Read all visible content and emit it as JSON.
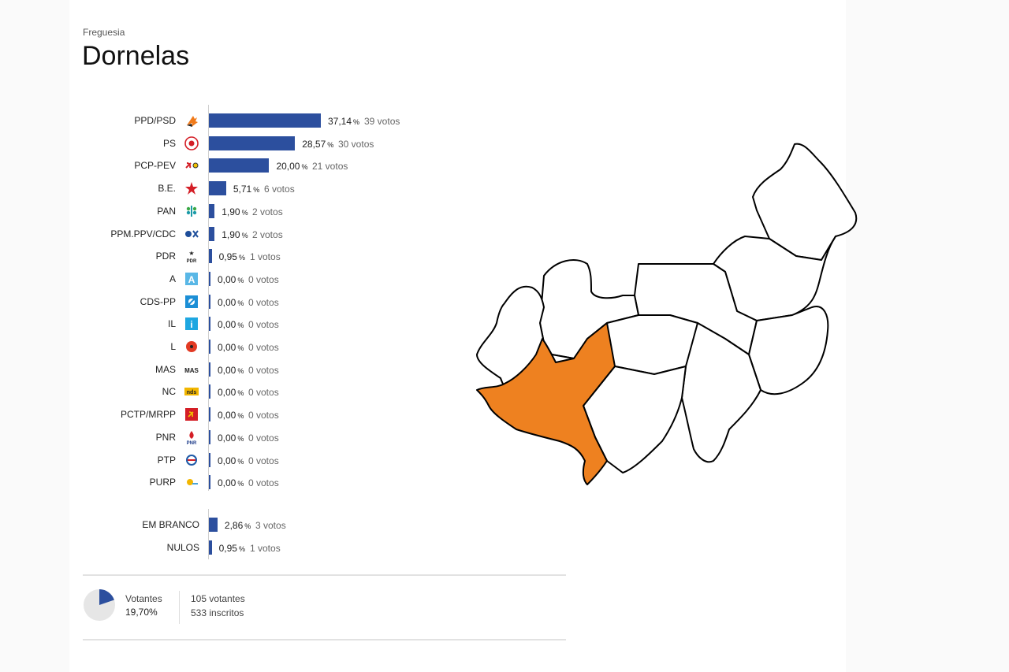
{
  "header": {
    "kicker": "Freguesia",
    "title": "Dornelas"
  },
  "colors": {
    "bar": "#2c4f9e",
    "highlight": "#ee8120",
    "map_fill": "#ffffff",
    "map_stroke": "#000000"
  },
  "chart_data": {
    "type": "bar",
    "orientation": "horizontal",
    "series": [
      {
        "name": "",
        "values": [
          37.14,
          28.57,
          20.0,
          5.71,
          1.9,
          1.9,
          0.95,
          0,
          0,
          0,
          0,
          0,
          0,
          0,
          0,
          0,
          0
        ]
      }
    ],
    "rows": [
      {
        "party": "PPD/PSD",
        "logo": "psd-logo-icon",
        "pct": 37.14,
        "pct_label": "37,14",
        "votes_label": "39 votos"
      },
      {
        "party": "PS",
        "logo": "ps-logo-icon",
        "pct": 28.57,
        "pct_label": "28,57",
        "votes_label": "30 votos"
      },
      {
        "party": "PCP-PEV",
        "logo": "pcp-pev-logo-icon",
        "pct": 20.0,
        "pct_label": "20,00",
        "votes_label": "21 votos"
      },
      {
        "party": "B.E.",
        "logo": "be-logo-icon",
        "pct": 5.71,
        "pct_label": "5,71",
        "votes_label": "6 votos"
      },
      {
        "party": "PAN",
        "logo": "pan-logo-icon",
        "pct": 1.9,
        "pct_label": "1,90",
        "votes_label": "2 votos"
      },
      {
        "party": "PPM.PPV/CDC",
        "logo": "ppm-ppv-cdc-logo-icon",
        "pct": 1.9,
        "pct_label": "1,90",
        "votes_label": "2 votos"
      },
      {
        "party": "PDR",
        "logo": "pdr-logo-icon",
        "pct": 0.95,
        "pct_label": "0,95",
        "votes_label": "1 votos"
      },
      {
        "party": "A",
        "logo": "a-logo-icon",
        "pct": 0,
        "pct_label": "0,00",
        "votes_label": "0 votos"
      },
      {
        "party": "CDS-PP",
        "logo": "cds-pp-logo-icon",
        "pct": 0,
        "pct_label": "0,00",
        "votes_label": "0 votos"
      },
      {
        "party": "IL",
        "logo": "il-logo-icon",
        "pct": 0,
        "pct_label": "0,00",
        "votes_label": "0 votos"
      },
      {
        "party": "L",
        "logo": "l-logo-icon",
        "pct": 0,
        "pct_label": "0,00",
        "votes_label": "0 votos"
      },
      {
        "party": "MAS",
        "logo": "mas-logo-icon",
        "pct": 0,
        "pct_label": "0,00",
        "votes_label": "0 votos"
      },
      {
        "party": "NC",
        "logo": "nc-logo-icon",
        "pct": 0,
        "pct_label": "0,00",
        "votes_label": "0 votos"
      },
      {
        "party": "PCTP/MRPP",
        "logo": "pctp-mrpp-logo-icon",
        "pct": 0,
        "pct_label": "0,00",
        "votes_label": "0 votos"
      },
      {
        "party": "PNR",
        "logo": "pnr-logo-icon",
        "pct": 0,
        "pct_label": "0,00",
        "votes_label": "0 votos"
      },
      {
        "party": "PTP",
        "logo": "ptp-logo-icon",
        "pct": 0,
        "pct_label": "0,00",
        "votes_label": "0 votos"
      },
      {
        "party": "PURP",
        "logo": "purp-logo-icon",
        "pct": 0,
        "pct_label": "0,00",
        "votes_label": "0 votos"
      }
    ],
    "extra_rows": [
      {
        "party": "EM BRANCO",
        "pct": 2.86,
        "pct_label": "2,86",
        "votes_label": "3 votos"
      },
      {
        "party": "NULOS",
        "pct": 0.95,
        "pct_label": "0,95",
        "votes_label": "1 votos"
      }
    ],
    "percent_symbol": "%"
  },
  "turnout": {
    "label": "Votantes",
    "value_label": "19,70%",
    "value": 19.7,
    "voters_label": "105 votantes",
    "registered_label": "533 inscritos"
  }
}
